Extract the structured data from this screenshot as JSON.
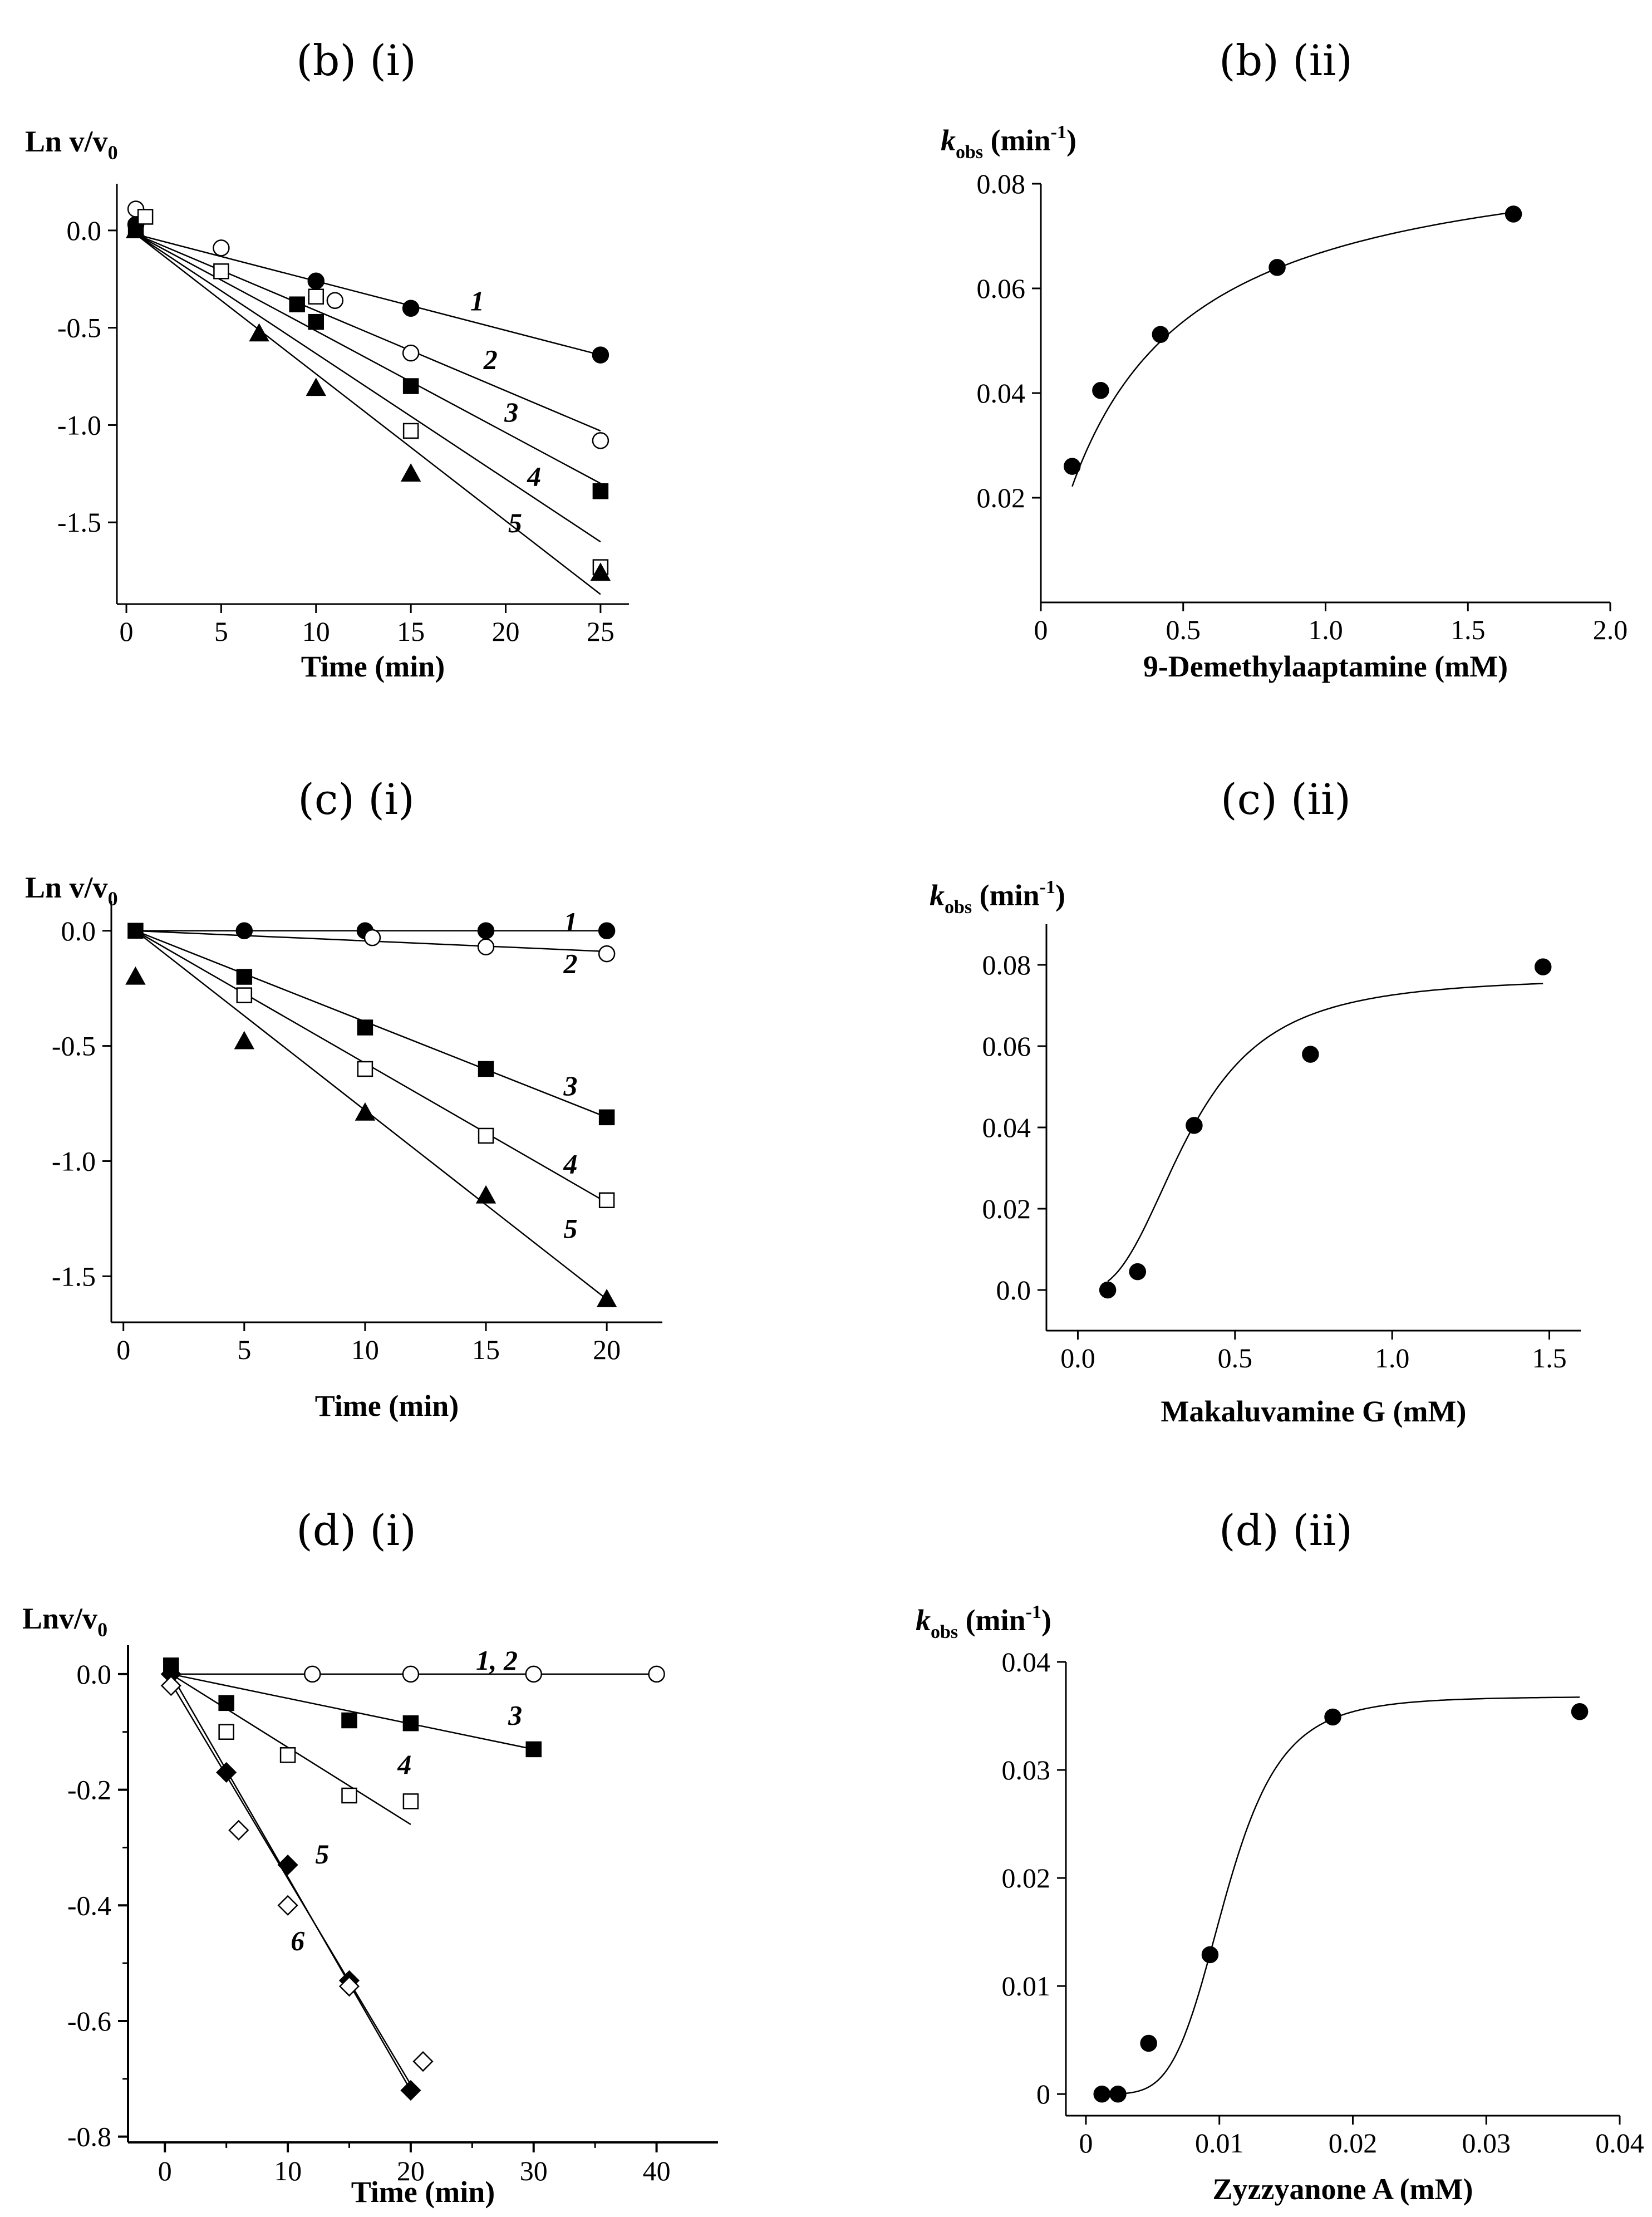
{
  "chart_data": [
    {
      "id": "b_i",
      "type": "scatter",
      "panel_title": "(b) (i)",
      "ylabel": "Ln v/v",
      "ylabel_sub": "0",
      "xlabel": "Time (min)",
      "xlim": [
        -0.5,
        26.5
      ],
      "ylim": [
        -1.92,
        0.24
      ],
      "xticks": [
        0,
        5,
        10,
        15,
        20,
        25
      ],
      "xtick_labels": [
        "0",
        "5",
        "10",
        "15",
        "20",
        "25"
      ],
      "yticks": [
        0.0,
        -0.5,
        -1.0,
        -1.5
      ],
      "ytick_labels": [
        "0.0",
        "-0.5",
        "-1.0",
        "-1.5"
      ],
      "series": [
        {
          "name": "1",
          "marker": "filled-circle",
          "x": [
            0.5,
            10,
            15,
            25
          ],
          "y": [
            0.03,
            -0.26,
            -0.4,
            -0.64
          ],
          "line": [
            [
              0.5,
              -0.02
            ],
            [
              25,
              -0.64
            ]
          ],
          "label_pos": [
            18.5,
            -0.36
          ]
        },
        {
          "name": "2",
          "marker": "open-circle",
          "x": [
            0.5,
            5,
            11,
            15,
            25
          ],
          "y": [
            0.11,
            -0.09,
            -0.36,
            -0.63,
            -1.08
          ],
          "line": [
            [
              0.5,
              -0.02
            ],
            [
              25,
              -1.03
            ]
          ],
          "label_pos": [
            19.2,
            -0.66
          ]
        },
        {
          "name": "3",
          "marker": "filled-square",
          "x": [
            0.5,
            9,
            10,
            15,
            25
          ],
          "y": [
            0.01,
            -0.38,
            -0.47,
            -0.8,
            -1.34
          ],
          "line": [
            [
              0.5,
              -0.02
            ],
            [
              25,
              -1.3
            ]
          ],
          "label_pos": [
            20.3,
            -0.93
          ]
        },
        {
          "name": "4",
          "marker": "open-square",
          "x": [
            1,
            5,
            10,
            15,
            25
          ],
          "y": [
            0.07,
            -0.21,
            -0.34,
            -1.03,
            -1.73
          ],
          "line": [
            [
              0.5,
              -0.02
            ],
            [
              25,
              -1.6
            ]
          ],
          "label_pos": [
            21.5,
            -1.26
          ]
        },
        {
          "name": "5",
          "marker": "filled-triangle",
          "x": [
            0.5,
            7,
            10,
            15,
            25
          ],
          "y": [
            0.0,
            -0.53,
            -0.81,
            -1.25,
            -1.76
          ],
          "line": [
            [
              0.5,
              -0.02
            ],
            [
              25,
              -1.87
            ]
          ],
          "label_pos": [
            20.5,
            -1.5
          ]
        }
      ]
    },
    {
      "id": "b_ii",
      "type": "scatter",
      "panel_title": "(b) (ii)",
      "ylabel": "k",
      "ylabel_sub": "obs",
      "ylabel_unit": " (min",
      "ylabel_sup": "-1",
      "ylabel_close": ")",
      "xlabel": "9-Demethylaaptamine (mM)",
      "xlim": [
        0,
        2.0
      ],
      "ylim": [
        0.0,
        0.08
      ],
      "xticks": [
        0,
        0.5,
        1.0,
        1.5,
        2.0
      ],
      "xtick_labels": [
        "0",
        "0.5",
        "1.0",
        "1.5",
        "2.0"
      ],
      "yticks": [
        0.02,
        0.04,
        0.06,
        0.08
      ],
      "ytick_labels": [
        "0.02",
        "0.04",
        "0.06",
        "0.08"
      ],
      "points_x": [
        0.11,
        0.21,
        0.42,
        0.83,
        1.66
      ],
      "points_y": [
        0.026,
        0.0405,
        0.0512,
        0.064,
        0.0742
      ],
      "curve": {
        "kind": "hyperbolic",
        "Vmax": 0.0896,
        "K": 0.335,
        "x_from": 0.11,
        "x_to": 1.66
      }
    },
    {
      "id": "c_i",
      "type": "scatter",
      "panel_title": "(c) (i)",
      "ylabel": "Ln v/v",
      "ylabel_sub": "0",
      "xlabel": "Time (min)",
      "xlim": [
        -0.5,
        22.3
      ],
      "ylim": [
        -1.7,
        0.13
      ],
      "xticks": [
        0,
        5,
        10,
        15,
        20
      ],
      "xtick_labels": [
        "0",
        "5",
        "10",
        "15",
        "20"
      ],
      "yticks": [
        0.0,
        -0.5,
        -1.0,
        -1.5
      ],
      "ytick_labels": [
        "0.0",
        "-0.5",
        "-1.0",
        "-1.5"
      ],
      "series": [
        {
          "name": "1",
          "marker": "filled-circle",
          "x": [
            5,
            10,
            15,
            20
          ],
          "y": [
            0.0,
            0.0,
            0.0,
            0.0
          ],
          "line": [
            [
              0.5,
              0.0
            ],
            [
              20,
              0.0
            ]
          ],
          "label_pos": [
            18.5,
            0.04
          ]
        },
        {
          "name": "2",
          "marker": "open-circle",
          "x": [
            10.3,
            15,
            20
          ],
          "y": [
            -0.03,
            -0.07,
            -0.1
          ],
          "line": [
            [
              0.5,
              0.0
            ],
            [
              20,
              -0.09
            ]
          ],
          "label_pos": [
            18.5,
            -0.14
          ]
        },
        {
          "name": "3",
          "marker": "filled-square",
          "x": [
            0.5,
            5,
            10,
            15,
            20
          ],
          "y": [
            0.0,
            -0.2,
            -0.42,
            -0.6,
            -0.81
          ],
          "line": [
            [
              0.5,
              0.0
            ],
            [
              20,
              -0.81
            ]
          ],
          "label_pos": [
            18.5,
            -0.67
          ]
        },
        {
          "name": "4",
          "marker": "open-square",
          "x": [
            5,
            10,
            15,
            20
          ],
          "y": [
            -0.28,
            -0.6,
            -0.89,
            -1.17
          ],
          "line": [
            [
              0.5,
              0.0
            ],
            [
              20,
              -1.18
            ]
          ],
          "label_pos": [
            18.5,
            -1.01
          ]
        },
        {
          "name": "5",
          "marker": "filled-triangle",
          "x": [
            0.5,
            5,
            10,
            15,
            20
          ],
          "y": [
            -0.2,
            -0.48,
            -0.79,
            -1.15,
            -1.6
          ],
          "line": [
            [
              0.5,
              0.0
            ],
            [
              20,
              -1.6
            ]
          ],
          "label_pos": [
            18.5,
            -1.29
          ]
        }
      ]
    },
    {
      "id": "c_ii",
      "type": "scatter",
      "panel_title": "(c) (ii)",
      "ylabel": "k",
      "ylabel_sub": "obs",
      "ylabel_unit": " (min",
      "ylabel_sup": "-1",
      "ylabel_close": ")",
      "xlabel": "Makaluvamine G (mM)",
      "xlim": [
        -0.1,
        1.6
      ],
      "ylim": [
        -0.01,
        0.09
      ],
      "xticks": [
        0.0,
        0.5,
        1.0,
        1.5
      ],
      "xtick_labels": [
        "0.0",
        "0.5",
        "1.0",
        "1.5"
      ],
      "yticks": [
        0.0,
        0.02,
        0.04,
        0.06,
        0.08
      ],
      "ytick_labels": [
        "0.0",
        "0.02",
        "0.04",
        "0.06",
        "0.08"
      ],
      "points_x": [
        0.095,
        0.19,
        0.37,
        0.74,
        1.48
      ],
      "points_y": [
        0.0,
        0.0045,
        0.0405,
        0.058,
        0.0795
      ],
      "curve": {
        "kind": "hill",
        "Vmax": 0.077,
        "K": 0.355,
        "n": 2.7,
        "x_from": 0.095,
        "x_to": 1.48
      }
    },
    {
      "id": "d_i",
      "type": "scatter",
      "panel_title": "(d) (i)",
      "ylabel": "Lnv/v",
      "ylabel_sub": "0",
      "xlabel": "Time (min)",
      "xlim": [
        -3,
        45
      ],
      "ylim": [
        -0.81,
        0.05
      ],
      "xticks": [
        0,
        10,
        20,
        30,
        40
      ],
      "xtick_labels": [
        "0",
        "10",
        "20",
        "30",
        "40"
      ],
      "yticks": [
        0.0,
        -0.2,
        -0.4,
        -0.6,
        -0.8
      ],
      "ytick_labels": [
        "0.0",
        "-0.2",
        "-0.4",
        "-0.6",
        "-0.8"
      ],
      "series": [
        {
          "name": "1, 2",
          "marker": "open-circle",
          "x": [
            12,
            20,
            30,
            40
          ],
          "y": [
            0.0,
            0.0,
            0.0,
            0.0
          ],
          "line": [
            [
              0.5,
              0.0
            ],
            [
              40,
              0.0
            ]
          ],
          "label_pos": [
            27,
            0.025
          ]
        },
        {
          "name": "3",
          "marker": "filled-square",
          "x": [
            0.5,
            5,
            15,
            20,
            30
          ],
          "y": [
            0.015,
            -0.05,
            -0.08,
            -0.085,
            -0.13
          ],
          "line": [
            [
              0.5,
              0.0
            ],
            [
              30,
              -0.13
            ]
          ],
          "label_pos": [
            28.5,
            -0.07
          ]
        },
        {
          "name": "4",
          "marker": "open-square",
          "x": [
            5,
            10,
            15,
            20
          ],
          "y": [
            -0.1,
            -0.14,
            -0.21,
            -0.22
          ],
          "line": [
            [
              0.5,
              0.0
            ],
            [
              20,
              -0.26
            ]
          ],
          "label_pos": [
            19.5,
            -0.155
          ]
        },
        {
          "name": "5",
          "marker": "filled-diamond",
          "x": [
            0.5,
            5,
            10,
            15,
            20
          ],
          "y": [
            0.0,
            -0.17,
            -0.33,
            -0.53,
            -0.72
          ],
          "line": [
            [
              0.5,
              0.0
            ],
            [
              20,
              -0.72
            ]
          ],
          "label_pos": [
            12.8,
            -0.31
          ]
        },
        {
          "name": "6",
          "marker": "open-diamond",
          "x": [
            0.5,
            6,
            10,
            15,
            21
          ],
          "y": [
            -0.02,
            -0.27,
            -0.4,
            -0.54,
            -0.67
          ],
          "line": [
            [
              0.5,
              -0.015
            ],
            [
              20,
              -0.71
            ]
          ],
          "label_pos": [
            10.8,
            -0.46
          ]
        }
      ]
    },
    {
      "id": "d_ii",
      "type": "scatter",
      "panel_title": "(d) (ii)",
      "ylabel": "k",
      "ylabel_sub": "obs",
      "ylabel_unit": " (min",
      "ylabel_sup": "-1",
      "ylabel_close": ")",
      "xlabel": "Zyzzyanone A (mM)",
      "xlim": [
        -0.0015,
        0.04
      ],
      "ylim": [
        -0.002,
        0.04
      ],
      "xticks": [
        0,
        0.01,
        0.02,
        0.03,
        0.04
      ],
      "xtick_labels": [
        "0",
        "0.01",
        "0.02",
        "0.03",
        "0.04"
      ],
      "yticks": [
        0,
        0.01,
        0.02,
        0.03,
        0.04
      ],
      "ytick_labels": [
        "0",
        "0.01",
        "0.02",
        "0.03",
        "0.04"
      ],
      "points_x": [
        0.0012,
        0.0024,
        0.0047,
        0.0093,
        0.0185,
        0.037
      ],
      "points_y": [
        0.0,
        0.0,
        0.0047,
        0.0129,
        0.0349,
        0.0354
      ],
      "curve": {
        "kind": "hill",
        "Vmax": 0.0368,
        "K": 0.0105,
        "n": 5.0,
        "x_from": 0.0024,
        "x_to": 0.037
      }
    }
  ]
}
